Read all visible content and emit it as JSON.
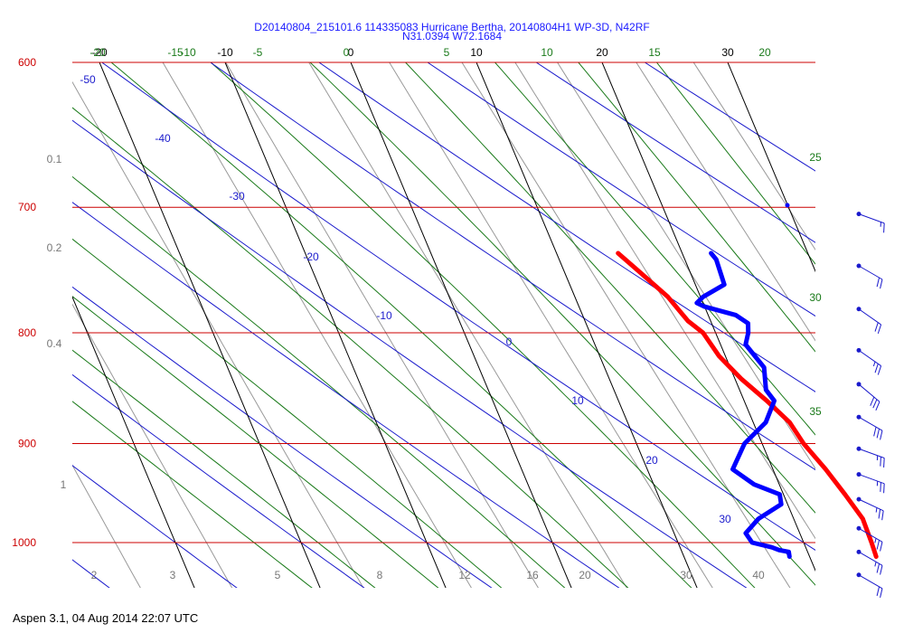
{
  "chart_data": {
    "type": "line",
    "title": "D20140804_215101.6 114335083 Hurricane Bertha, 20140804H1 WP-3D, N42RF",
    "subtitle": "N31.0394 W72.1684",
    "pressure_labels": [
      "600",
      "700",
      "800",
      "900",
      "1000"
    ],
    "mixing_ratio_labels": [
      "0.1",
      "0.2",
      "0.4",
      "1",
      "2",
      "3",
      "5",
      "8",
      "12",
      "16",
      "20",
      "30",
      "40"
    ],
    "top_temperature_labels": [
      "-20",
      "-10",
      "0",
      "10",
      "20",
      "30"
    ],
    "potential_temperature_labels": [
      "-50",
      "-40",
      "-30",
      "-20",
      "-10",
      "0",
      "10",
      "20",
      "30"
    ],
    "moist_adiabat_labels": [
      "-20",
      "-15",
      "-10",
      "-5",
      "0",
      "5",
      "10",
      "15",
      "20",
      "25",
      "30",
      "35"
    ],
    "xlim": [
      -20,
      30
    ],
    "ylim": [
      1050,
      575
    ],
    "series": [
      {
        "name": "",
        "color": "#ff0000",
        "pressure": [
          1015,
          1000,
          975,
          950,
          925,
          900,
          880,
          860,
          840,
          820,
          800,
          790,
          770,
          750,
          735
        ],
        "values": [
          25.3,
          25.4,
          25.5,
          24.9,
          24.2,
          23.3,
          22.9,
          21.8,
          20.5,
          19.5,
          19.0,
          18.2,
          17.4,
          16.0,
          14.9
        ]
      },
      {
        "name": "",
        "color": "#0000ff",
        "pressure": [
          1015,
          1010,
          1008,
          1005,
          1000,
          990,
          975,
          960,
          950,
          940,
          925,
          900,
          880,
          860,
          850,
          830,
          810,
          800,
          792,
          785,
          778,
          775,
          770,
          760,
          740,
          735
        ],
        "values": [
          18.4,
          18.5,
          17.8,
          17.3,
          15.9,
          15.7,
          17.2,
          19.5,
          19.7,
          18.0,
          16.8,
          18.6,
          21.0,
          22.4,
          22.1,
          22.7,
          22.0,
          22.6,
          22.9,
          22.2,
          20.0,
          19.5,
          20.2,
          22.3,
          22.5,
          22.3
        ]
      }
    ],
    "wind_barbs": [
      {
        "pressure": 705,
        "speed_kt": 15,
        "direction_deg": 290
      },
      {
        "pressure": 745,
        "speed_kt": 20,
        "direction_deg": 300
      },
      {
        "pressure": 780,
        "speed_kt": 20,
        "direction_deg": 305
      },
      {
        "pressure": 815,
        "speed_kt": 25,
        "direction_deg": 305
      },
      {
        "pressure": 845,
        "speed_kt": 30,
        "direction_deg": 310
      },
      {
        "pressure": 875,
        "speed_kt": 30,
        "direction_deg": 300
      },
      {
        "pressure": 905,
        "speed_kt": 25,
        "direction_deg": 290
      },
      {
        "pressure": 930,
        "speed_kt": 25,
        "direction_deg": 290
      },
      {
        "pressure": 955,
        "speed_kt": 25,
        "direction_deg": 295
      },
      {
        "pressure": 985,
        "speed_kt": 25,
        "direction_deg": 300
      },
      {
        "pressure": 1010,
        "speed_kt": 25,
        "direction_deg": 300
      },
      {
        "pressure": 1035,
        "speed_kt": 20,
        "direction_deg": 300
      }
    ],
    "colors": {
      "isobar": "#cc0000",
      "isotherm": "#000000",
      "dry_adiabat": "#1a1acc",
      "moist_adiabat": "#1a7a1a",
      "mixing_ratio": "#999999",
      "barb": "#1a1acc"
    }
  },
  "footer": "Aspen 3.1, 04 Aug 2014  22:07 UTC"
}
